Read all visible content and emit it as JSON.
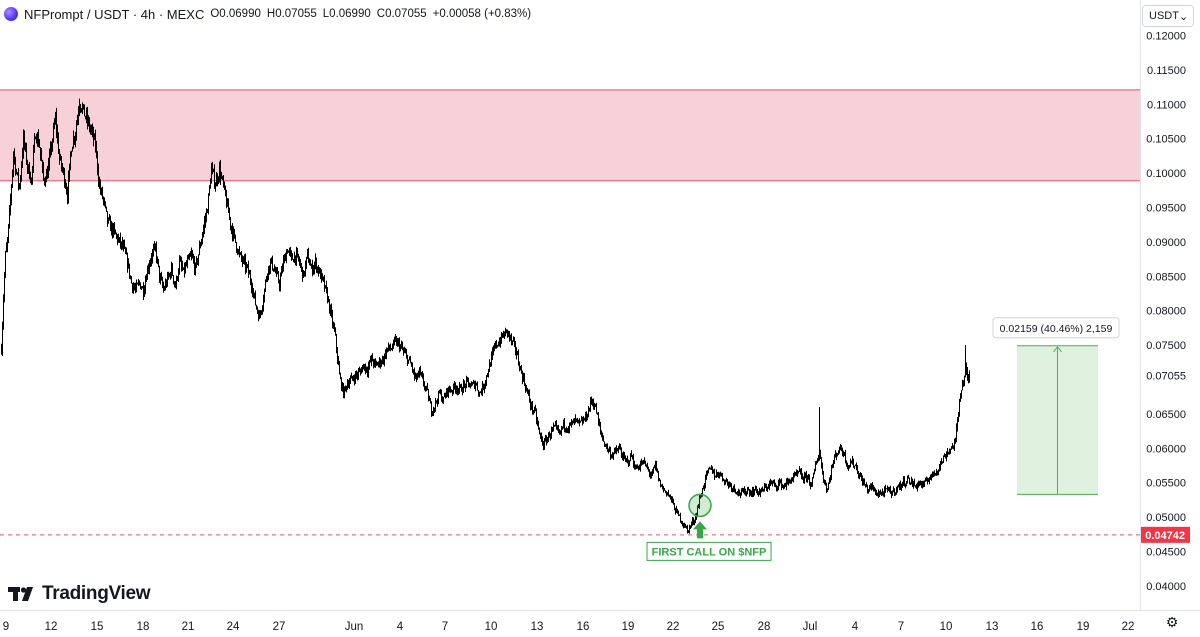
{
  "header": {
    "symbol": "NFPrompt / USDT · 4h · MEXC",
    "open_label": "O",
    "open": "0.06990",
    "high_label": "H",
    "high": "0.07055",
    "low_label": "L",
    "low": "0.06990",
    "close_label": "C",
    "close": "0.07055",
    "change": "+0.00058 (+0.83%)"
  },
  "currency_button": {
    "label": "USDT",
    "icon": "chevron-down-icon"
  },
  "branding": {
    "wordmark": "TradingView",
    "icon": "tradingview-logo-icon"
  },
  "settings": {
    "icon": "gear-icon"
  },
  "colors": {
    "resistance_zone": "#f8d1d8",
    "resistance_border": "#e5556d",
    "support_line": "#e5556d",
    "price_badge": "#f23645",
    "measure_fill": "#dff1df",
    "measure_line": "#4caf50",
    "callout": "#3aa64a",
    "candle": "#000000"
  },
  "chart_data": {
    "type": "candlestick",
    "pair": "NFPrompt / USDT",
    "interval": "4h",
    "exchange": "MEXC",
    "grid": false,
    "ylim": [
      0.0394,
      0.1208
    ],
    "y_ticks": [
      "0.12000",
      "0.11500",
      "0.11000",
      "0.10500",
      "0.10000",
      "0.09500",
      "0.09000",
      "0.08500",
      "0.08000",
      "0.07500",
      "0.07055",
      "0.06500",
      "0.06000",
      "0.05500",
      "0.05000",
      "0.04742",
      "0.04500",
      "0.04000"
    ],
    "x_ticks": [
      "9",
      "12",
      "15",
      "18",
      "21",
      "24",
      "27",
      "Jun",
      "4",
      "7",
      "10",
      "13",
      "16",
      "19",
      "22",
      "25",
      "28",
      "Jul",
      "4",
      "7",
      "10",
      "13",
      "16",
      "19",
      "22"
    ],
    "close_path": [
      [
        0,
        0.0745
      ],
      [
        2,
        0.082
      ],
      [
        4,
        0.088
      ],
      [
        6,
        0.09
      ],
      [
        9,
        0.096
      ],
      [
        12,
        0.103
      ],
      [
        15,
        0.1
      ],
      [
        18,
        0.098
      ],
      [
        22,
        0.105
      ],
      [
        26,
        0.101
      ],
      [
        30,
        0.099
      ],
      [
        34,
        0.106
      ],
      [
        38,
        0.104
      ],
      [
        42,
        0.099
      ],
      [
        46,
        0.1
      ],
      [
        50,
        0.104
      ],
      [
        54,
        0.108
      ],
      [
        58,
        0.102
      ],
      [
        62,
        0.1
      ],
      [
        66,
        0.097
      ],
      [
        70,
        0.104
      ],
      [
        74,
        0.106
      ],
      [
        78,
        0.1105
      ],
      [
        82,
        0.109
      ],
      [
        86,
        0.1075
      ],
      [
        90,
        0.106
      ],
      [
        94,
        0.104
      ],
      [
        98,
        0.098
      ],
      [
        102,
        0.096
      ],
      [
        106,
        0.093
      ],
      [
        110,
        0.092
      ],
      [
        114,
        0.091
      ],
      [
        118,
        0.09
      ],
      [
        122,
        0.089
      ],
      [
        126,
        0.087
      ],
      [
        130,
        0.084
      ],
      [
        134,
        0.083
      ],
      [
        138,
        0.084
      ],
      [
        142,
        0.083
      ],
      [
        146,
        0.086
      ],
      [
        150,
        0.088
      ],
      [
        154,
        0.089
      ],
      [
        158,
        0.085
      ],
      [
        162,
        0.083
      ],
      [
        166,
        0.0845
      ],
      [
        170,
        0.086
      ],
      [
        174,
        0.0835
      ],
      [
        178,
        0.087
      ],
      [
        182,
        0.0855
      ],
      [
        186,
        0.087
      ],
      [
        190,
        0.088
      ],
      [
        194,
        0.086
      ],
      [
        198,
        0.089
      ],
      [
        202,
        0.092
      ],
      [
        206,
        0.095
      ],
      [
        210,
        0.1005
      ],
      [
        214,
        0.0985
      ],
      [
        218,
        0.1005
      ],
      [
        222,
        0.098
      ],
      [
        226,
        0.095
      ],
      [
        230,
        0.092
      ],
      [
        234,
        0.09
      ],
      [
        238,
        0.088
      ],
      [
        242,
        0.087
      ],
      [
        246,
        0.086
      ],
      [
        250,
        0.084
      ],
      [
        254,
        0.081
      ],
      [
        258,
        0.079
      ],
      [
        262,
        0.082
      ],
      [
        266,
        0.086
      ],
      [
        270,
        0.087
      ],
      [
        274,
        0.0855
      ],
      [
        278,
        0.084
      ],
      [
        282,
        0.087
      ],
      [
        286,
        0.089
      ],
      [
        290,
        0.0875
      ],
      [
        294,
        0.088
      ],
      [
        298,
        0.087
      ],
      [
        302,
        0.085
      ],
      [
        306,
        0.088
      ],
      [
        310,
        0.086
      ],
      [
        314,
        0.087
      ],
      [
        318,
        0.0855
      ],
      [
        322,
        0.084
      ],
      [
        326,
        0.082
      ],
      [
        330,
        0.079
      ],
      [
        334,
        0.076
      ],
      [
        338,
        0.0705
      ],
      [
        342,
        0.068
      ],
      [
        346,
        0.0695
      ],
      [
        350,
        0.07
      ],
      [
        354,
        0.0705
      ],
      [
        358,
        0.071
      ],
      [
        362,
        0.072
      ],
      [
        366,
        0.0715
      ],
      [
        370,
        0.073
      ],
      [
        374,
        0.072
      ],
      [
        378,
        0.0725
      ],
      [
        382,
        0.073
      ],
      [
        386,
        0.0745
      ],
      [
        390,
        0.0745
      ],
      [
        394,
        0.0755
      ],
      [
        398,
        0.075
      ],
      [
        402,
        0.074
      ],
      [
        406,
        0.073
      ],
      [
        410,
        0.072
      ],
      [
        414,
        0.07
      ],
      [
        418,
        0.071
      ],
      [
        422,
        0.0695
      ],
      [
        426,
        0.068
      ],
      [
        430,
        0.0655
      ],
      [
        434,
        0.0665
      ],
      [
        438,
        0.068
      ],
      [
        442,
        0.067
      ],
      [
        446,
        0.0685
      ],
      [
        450,
        0.0685
      ],
      [
        454,
        0.069
      ],
      [
        458,
        0.0685
      ],
      [
        462,
        0.069
      ],
      [
        466,
        0.0695
      ],
      [
        470,
        0.069
      ],
      [
        474,
        0.0695
      ],
      [
        478,
        0.068
      ],
      [
        482,
        0.069
      ],
      [
        486,
        0.071
      ],
      [
        490,
        0.073
      ],
      [
        494,
        0.075
      ],
      [
        498,
        0.0755
      ],
      [
        502,
        0.0765
      ],
      [
        506,
        0.077
      ],
      [
        510,
        0.0755
      ],
      [
        514,
        0.0745
      ],
      [
        518,
        0.072
      ],
      [
        522,
        0.07
      ],
      [
        526,
        0.068
      ],
      [
        530,
        0.066
      ],
      [
        534,
        0.065
      ],
      [
        538,
        0.062
      ],
      [
        542,
        0.0605
      ],
      [
        546,
        0.0615
      ],
      [
        550,
        0.0625
      ],
      [
        554,
        0.063
      ],
      [
        558,
        0.062
      ],
      [
        562,
        0.0635
      ],
      [
        566,
        0.063
      ],
      [
        570,
        0.0635
      ],
      [
        574,
        0.064
      ],
      [
        578,
        0.0635
      ],
      [
        582,
        0.064
      ],
      [
        586,
        0.065
      ],
      [
        590,
        0.067
      ],
      [
        594,
        0.066
      ],
      [
        598,
        0.063
      ],
      [
        602,
        0.061
      ],
      [
        606,
        0.06
      ],
      [
        610,
        0.059
      ],
      [
        614,
        0.0595
      ],
      [
        618,
        0.06
      ],
      [
        622,
        0.0585
      ],
      [
        626,
        0.058
      ],
      [
        630,
        0.059
      ],
      [
        634,
        0.057
      ],
      [
        638,
        0.0575
      ],
      [
        642,
        0.058
      ],
      [
        646,
        0.057
      ],
      [
        650,
        0.056
      ],
      [
        654,
        0.0575
      ],
      [
        658,
        0.055
      ],
      [
        662,
        0.054
      ],
      [
        666,
        0.0535
      ],
      [
        670,
        0.0525
      ],
      [
        674,
        0.051
      ],
      [
        678,
        0.05
      ],
      [
        682,
        0.049
      ],
      [
        686,
        0.048
      ],
      [
        690,
        0.049
      ],
      [
        694,
        0.05
      ],
      [
        698,
        0.0525
      ],
      [
        702,
        0.0545
      ],
      [
        706,
        0.0565
      ],
      [
        710,
        0.057
      ],
      [
        714,
        0.056
      ],
      [
        718,
        0.0565
      ],
      [
        722,
        0.0555
      ],
      [
        726,
        0.055
      ],
      [
        730,
        0.0545
      ],
      [
        734,
        0.054
      ],
      [
        738,
        0.0535
      ],
      [
        742,
        0.0535
      ],
      [
        746,
        0.054
      ],
      [
        750,
        0.0535
      ],
      [
        754,
        0.054
      ],
      [
        758,
        0.0535
      ],
      [
        762,
        0.054
      ],
      [
        766,
        0.0545
      ],
      [
        770,
        0.055
      ],
      [
        774,
        0.0545
      ],
      [
        778,
        0.055
      ],
      [
        782,
        0.0545
      ],
      [
        786,
        0.055
      ],
      [
        790,
        0.0555
      ],
      [
        794,
        0.056
      ],
      [
        798,
        0.0565
      ],
      [
        802,
        0.0555
      ],
      [
        806,
        0.056
      ],
      [
        810,
        0.0545
      ],
      [
        814,
        0.0575
      ],
      [
        818,
        0.0595
      ],
      [
        822,
        0.0555
      ],
      [
        826,
        0.054
      ],
      [
        830,
        0.057
      ],
      [
        834,
        0.059
      ],
      [
        838,
        0.06
      ],
      [
        842,
        0.0595
      ],
      [
        846,
        0.0575
      ],
      [
        850,
        0.058
      ],
      [
        854,
        0.0575
      ],
      [
        858,
        0.056
      ],
      [
        862,
        0.055
      ],
      [
        866,
        0.054
      ],
      [
        870,
        0.0545
      ],
      [
        874,
        0.0535
      ],
      [
        878,
        0.0535
      ],
      [
        882,
        0.0535
      ],
      [
        886,
        0.054
      ],
      [
        890,
        0.0535
      ],
      [
        894,
        0.054
      ],
      [
        898,
        0.0545
      ],
      [
        902,
        0.055
      ],
      [
        906,
        0.0555
      ],
      [
        910,
        0.055
      ],
      [
        914,
        0.0545
      ],
      [
        918,
        0.055
      ],
      [
        922,
        0.0545
      ],
      [
        926,
        0.0555
      ],
      [
        930,
        0.056
      ],
      [
        934,
        0.0565
      ],
      [
        938,
        0.0575
      ],
      [
        942,
        0.0585
      ],
      [
        946,
        0.0595
      ],
      [
        950,
        0.06
      ],
      [
        954,
        0.061
      ],
      [
        956,
        0.064
      ],
      [
        958,
        0.067
      ],
      [
        960,
        0.069
      ],
      [
        962,
        0.0695
      ],
      [
        964,
        0.0715
      ],
      [
        966,
        0.07
      ],
      [
        968,
        0.0705
      ]
    ],
    "spikes": [
      {
        "x": 818,
        "high": 0.066
      },
      {
        "x": 964,
        "high": 0.075
      }
    ],
    "resistance_zone": {
      "low": 0.09888,
      "high": 0.1121
    },
    "support_level": {
      "value": 0.04742,
      "label": "0.04742",
      "style": "dashed"
    },
    "last_price": {
      "value": 0.07055,
      "label": "0.07055"
    },
    "callout": {
      "text": "FIRST CALL ON $NFP",
      "price": 0.0517,
      "bar": 699
    },
    "measure": {
      "label": "0.02159 (40.46%) 2,159",
      "from": 0.0533,
      "to": 0.0749
    }
  }
}
